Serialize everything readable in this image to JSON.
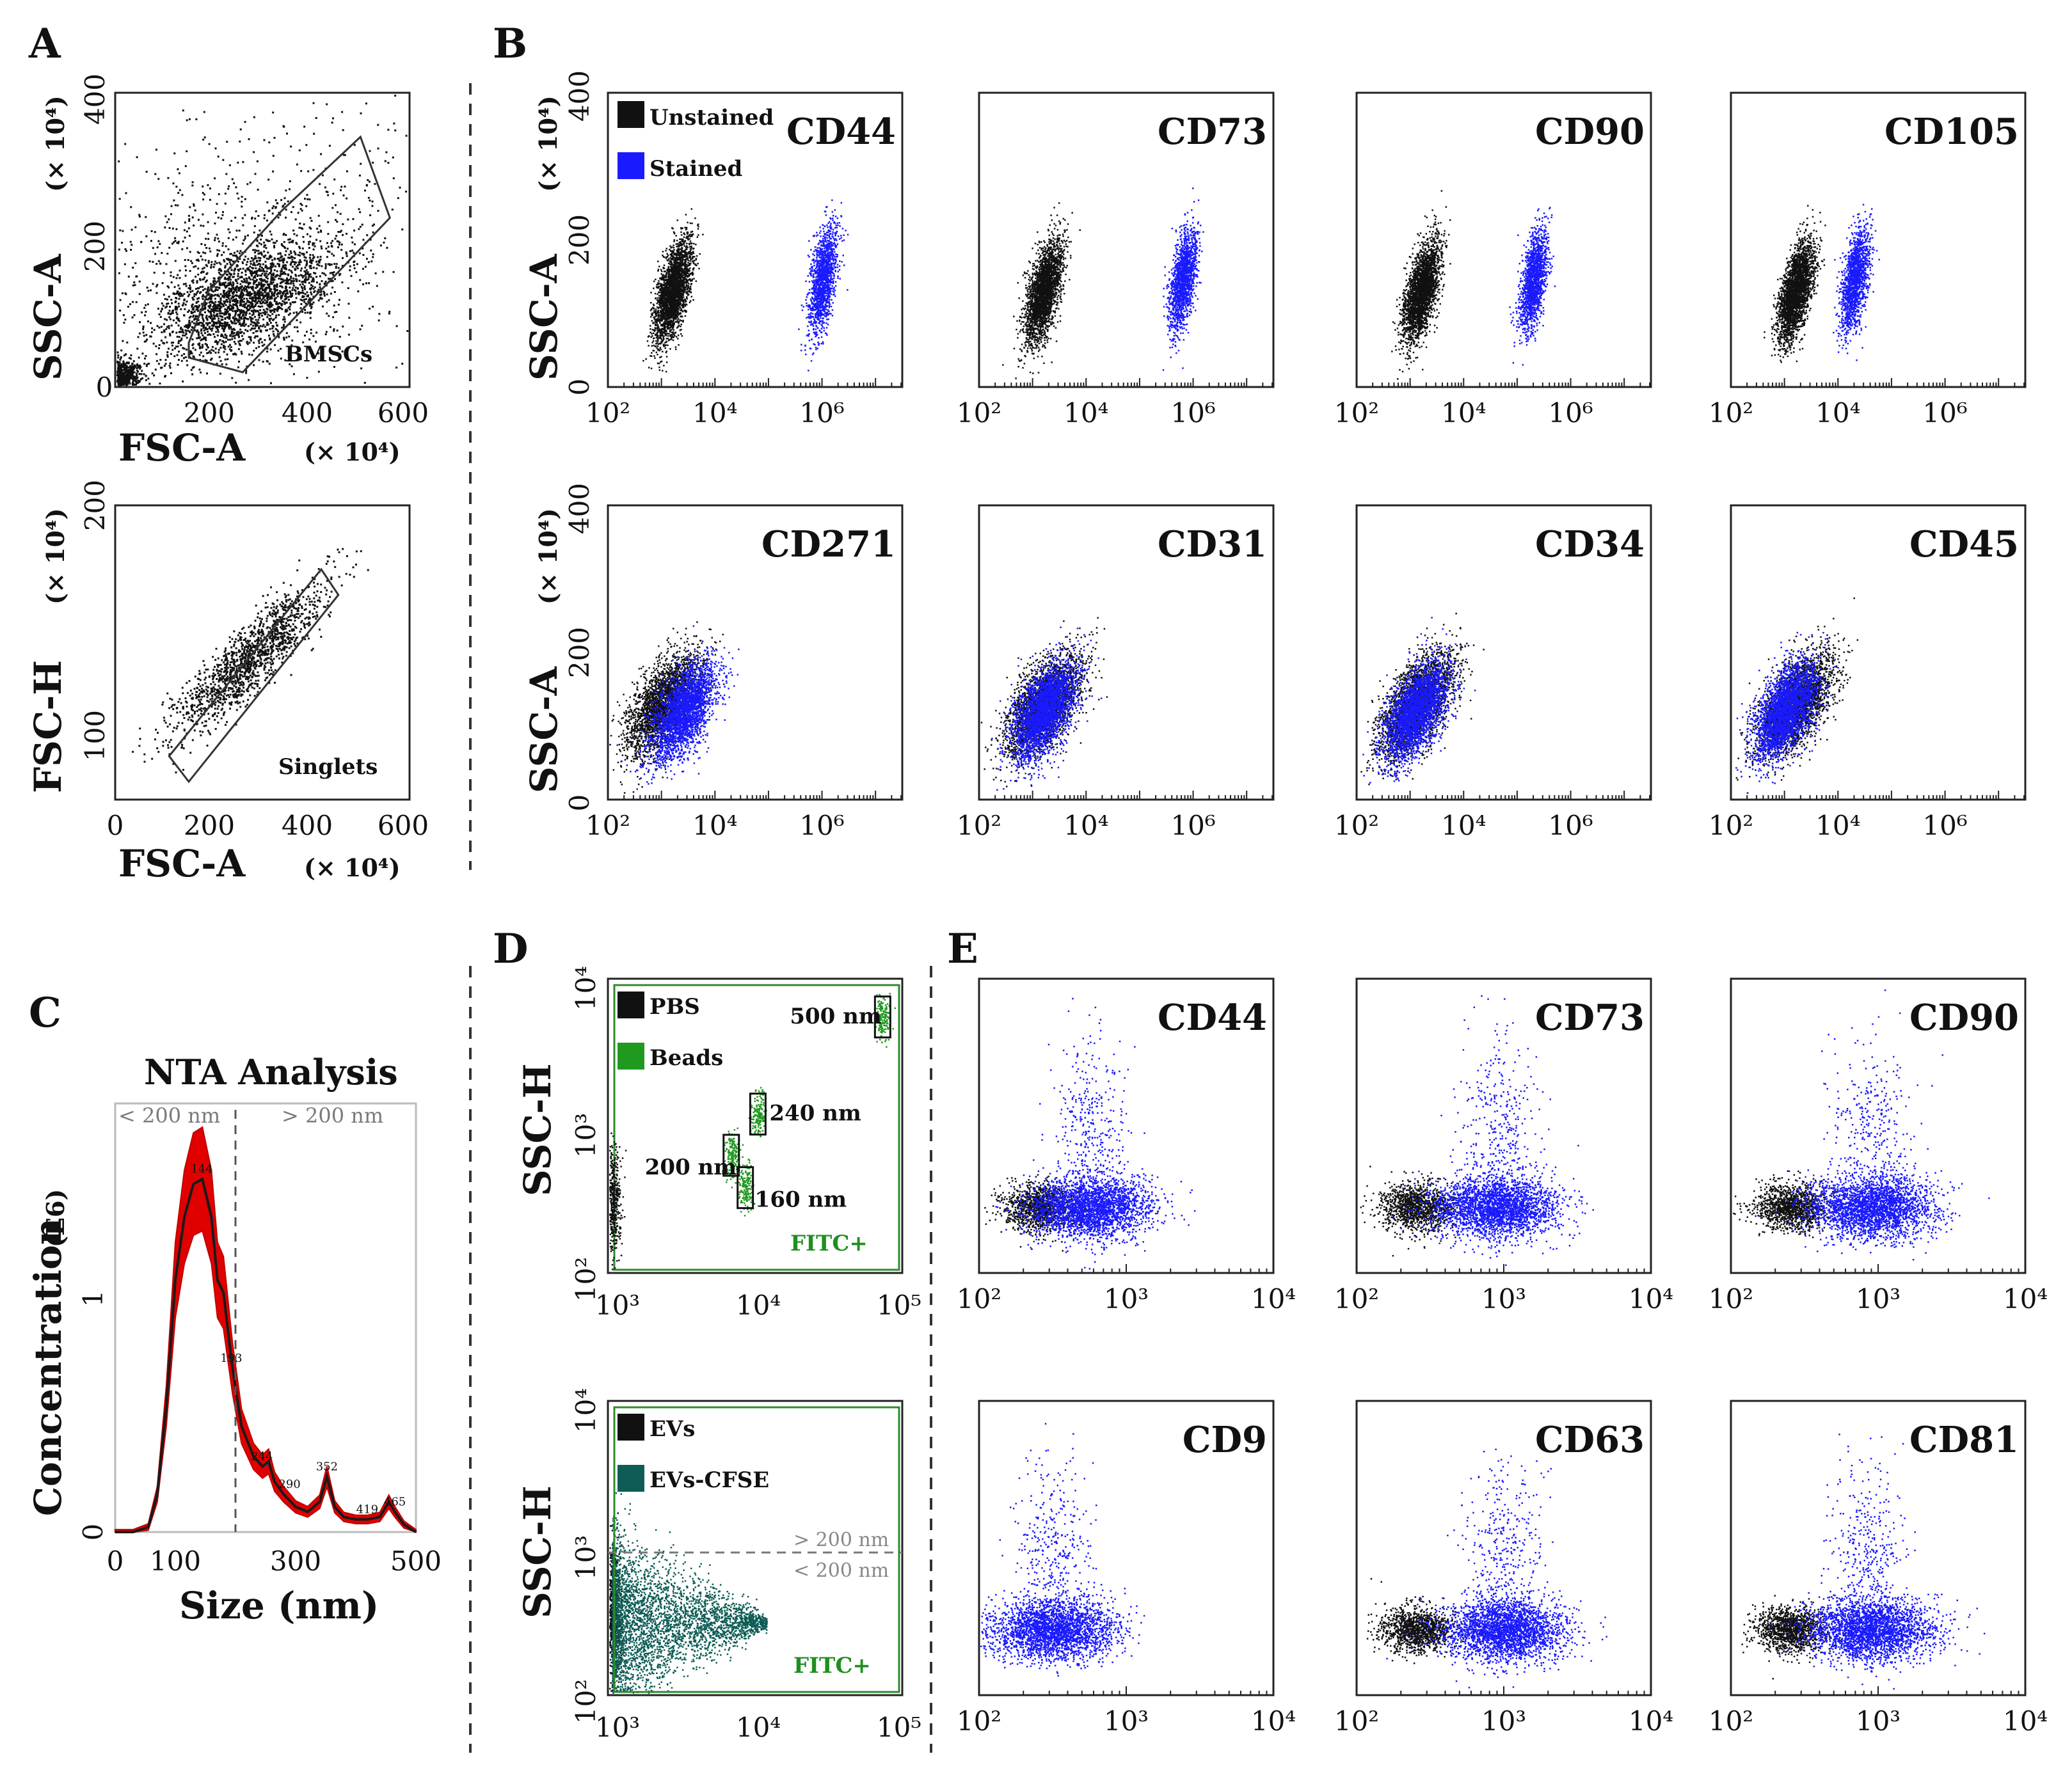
{
  "figure": {
    "panel_labels": {
      "A": "A",
      "B": "B",
      "C": "C",
      "D": "D",
      "E": "E"
    },
    "scale_label": "(× 10⁴)",
    "concentration_unit": "(E6)"
  },
  "colors": {
    "unstained": "#111111",
    "stained": "#1a1aff",
    "beads": "#1f9a1f",
    "evs_cfse": "#0d5c55",
    "nta_fill": "#e00000",
    "gate": "#333333",
    "fitc_box": "#2e8b2e"
  },
  "chart_data": [
    {
      "id": "A_top",
      "type": "scatter",
      "xlabel": "FSC-A",
      "ylabel": "SSC-A",
      "xunit": "(× 10⁴)",
      "yunit": "(× 10⁴)",
      "xlim": [
        0,
        600
      ],
      "ylim": [
        0,
        400
      ],
      "xticks": [
        "0",
        "200",
        "400",
        "600"
      ],
      "yticks": [
        "0",
        "200",
        "400"
      ],
      "gate": {
        "label": "BMSCs",
        "polygon": [
          [
            150,
            40
          ],
          [
            260,
            20
          ],
          [
            560,
            230
          ],
          [
            500,
            340
          ],
          [
            340,
            240
          ],
          [
            190,
            130
          ],
          [
            150,
            60
          ]
        ]
      },
      "population": {
        "center": [
          260,
          120
        ],
        "spread": [
          70,
          45
        ],
        "count": 2200
      }
    },
    {
      "id": "A_bottom",
      "type": "scatter",
      "xlabel": "FSC-A",
      "ylabel": "FSC-H",
      "xunit": "(× 10⁴)",
      "yunit": "(× 10⁴)",
      "xlim": [
        0,
        600
      ],
      "ylim": [
        85,
        200
      ],
      "xticks": [
        "0",
        "200",
        "400",
        "600"
      ],
      "yticks": [
        "100",
        "200"
      ],
      "gate": {
        "label": "Singlets",
        "polygon": [
          [
            110,
            102
          ],
          [
            420,
            175
          ],
          [
            455,
            165
          ],
          [
            150,
            92
          ]
        ]
      },
      "population": {
        "center": [
          270,
          140
        ],
        "spread": [
          60,
          12
        ],
        "count": 1400
      }
    },
    {
      "id": "B",
      "type": "scatter",
      "xscale": "log",
      "ylabel": "SSC-A",
      "yunit": "(× 10⁴)",
      "xlim_log10": [
        2,
        7.5
      ],
      "ylim": [
        0,
        400
      ],
      "xticks": [
        "10²",
        "10⁴",
        "10⁶"
      ],
      "yticks": [
        "0",
        "200",
        "400"
      ],
      "legend": [
        {
          "label": "Unstained",
          "color": "#111111"
        },
        {
          "label": "Stained",
          "color": "#1a1aff"
        }
      ],
      "markers": [
        {
          "name": "CD44",
          "unstained_log_x": 3.2,
          "stained_log_x": 6.0
        },
        {
          "name": "CD73",
          "unstained_log_x": 3.2,
          "stained_log_x": 5.8
        },
        {
          "name": "CD90",
          "unstained_log_x": 3.2,
          "stained_log_x": 5.3
        },
        {
          "name": "CD105",
          "unstained_log_x": 3.2,
          "stained_log_x": 4.3
        },
        {
          "name": "CD271",
          "unstained_log_x": 3.0,
          "stained_log_x": 3.4
        },
        {
          "name": "CD31",
          "unstained_log_x": 3.2,
          "stained_log_x": 3.2
        },
        {
          "name": "CD34",
          "unstained_log_x": 3.1,
          "stained_log_x": 3.1
        },
        {
          "name": "CD45",
          "unstained_log_x": 3.2,
          "stained_log_x": 3.0
        }
      ]
    },
    {
      "id": "C",
      "type": "area",
      "title": "NTA Analysis",
      "xlabel": "Size (nm)",
      "ylabel": "Concentration",
      "xlim": [
        0,
        500
      ],
      "ylim": [
        0,
        1.7
      ],
      "xticks": [
        "0",
        "100",
        "300",
        "500"
      ],
      "yticks": [
        "0",
        "1"
      ],
      "threshold_nm": 200,
      "left_label": "< 200 nm",
      "right_label": "> 200 nm",
      "x": [
        0,
        30,
        55,
        70,
        85,
        100,
        115,
        130,
        145,
        160,
        170,
        180,
        195,
        210,
        230,
        245,
        255,
        265,
        280,
        300,
        320,
        340,
        352,
        365,
        380,
        400,
        420,
        440,
        455,
        465,
        480,
        500
      ],
      "y": [
        0,
        0,
        0.02,
        0.15,
        0.5,
        1.0,
        1.25,
        1.38,
        1.4,
        1.25,
        1.0,
        0.95,
        0.65,
        0.42,
        0.3,
        0.26,
        0.28,
        0.2,
        0.15,
        0.1,
        0.08,
        0.12,
        0.22,
        0.1,
        0.06,
        0.05,
        0.05,
        0.06,
        0.12,
        0.08,
        0.03,
        0
      ],
      "peak_labels": [
        "144",
        "193",
        "244",
        "290",
        "352",
        "419",
        "465"
      ]
    },
    {
      "id": "D_top",
      "type": "scatter",
      "xscale": "log",
      "yscale": "log",
      "ylabel": "SSC-H",
      "xlim_log10": [
        2.9,
        5
      ],
      "ylim_log10": [
        2,
        4
      ],
      "xticks": [
        "10³",
        "10⁴",
        "10⁵"
      ],
      "yticks": [
        "10²",
        "10³",
        "10⁴"
      ],
      "legend": [
        {
          "label": "PBS",
          "color": "#111111"
        },
        {
          "label": "Beads",
          "color": "#1f9a1f"
        }
      ],
      "gate_label": "FITC+",
      "beads": [
        {
          "label": "500 nm",
          "log_x": 4.86,
          "log_y": 3.74
        },
        {
          "label": "240 nm",
          "log_x": 3.97,
          "log_y": 3.08
        },
        {
          "label": "200 nm",
          "log_x": 3.78,
          "log_y": 2.8
        },
        {
          "label": "160 nm",
          "log_x": 3.88,
          "log_y": 2.58
        }
      ]
    },
    {
      "id": "D_bottom",
      "type": "scatter",
      "xscale": "log",
      "yscale": "log",
      "ylabel": "SSC-H",
      "xlim_log10": [
        2.9,
        5
      ],
      "ylim_log10": [
        2,
        4
      ],
      "xticks": [
        "10³",
        "10⁴",
        "10⁵"
      ],
      "yticks": [
        "10²",
        "10³",
        "10⁴"
      ],
      "legend": [
        {
          "label": "EVs",
          "color": "#111111"
        },
        {
          "label": "EVs-CFSE",
          "color": "#0d5c55"
        }
      ],
      "threshold_log_y": 2.92,
      "above_label": "> 200 nm",
      "below_label": "< 200 nm",
      "gate_label": "FITC+"
    },
    {
      "id": "E",
      "type": "scatter",
      "xscale": "log",
      "yscale": "log",
      "xlim_log10": [
        2,
        4
      ],
      "ylim_log10": [
        2,
        4
      ],
      "xticks": [
        "10²",
        "10³",
        "10⁴"
      ],
      "markers": [
        {
          "name": "CD44",
          "stained_log_x": 2.75
        },
        {
          "name": "CD73",
          "stained_log_x": 2.95
        },
        {
          "name": "CD90",
          "stained_log_x": 2.95
        },
        {
          "name": "CD9",
          "stained_log_x": 2.5
        },
        {
          "name": "CD63",
          "stained_log_x": 3.0
        },
        {
          "name": "CD81",
          "stained_log_x": 2.95
        }
      ]
    }
  ]
}
